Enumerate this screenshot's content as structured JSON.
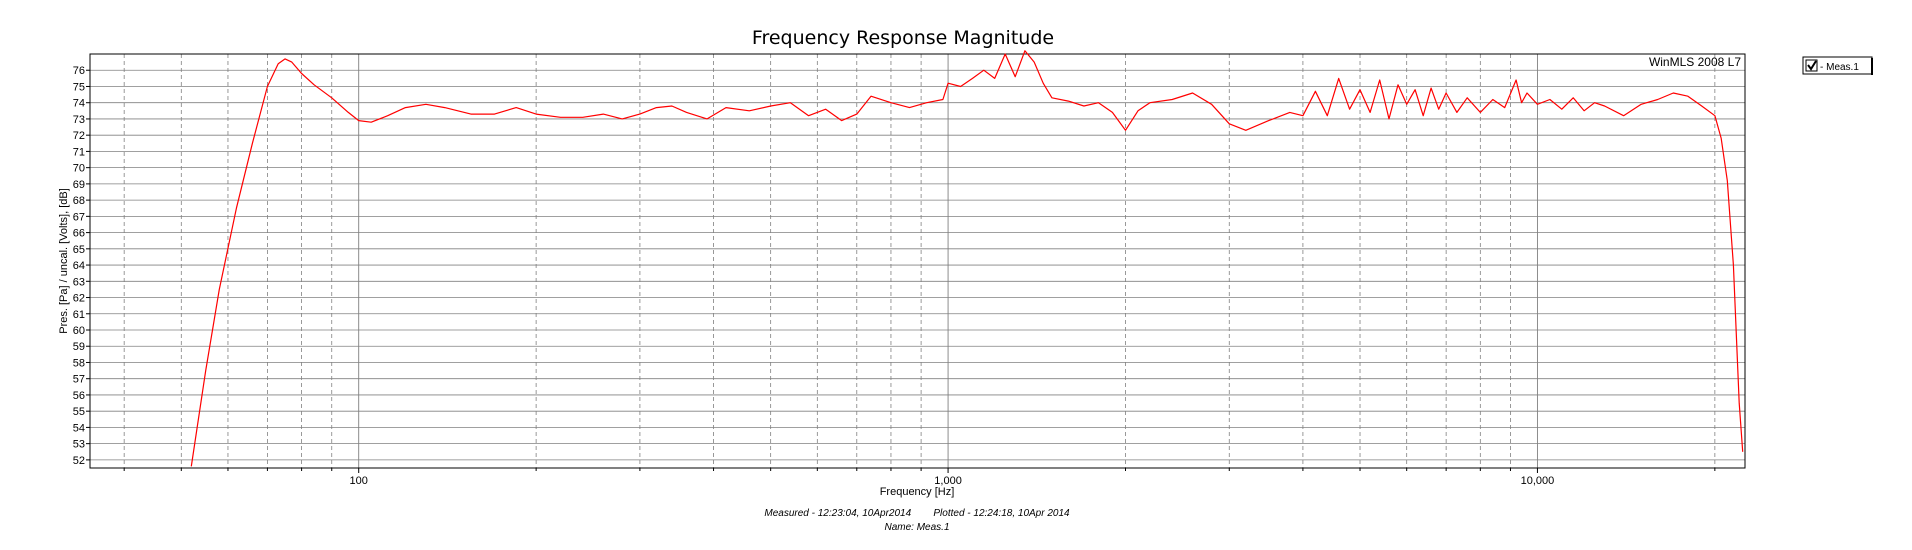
{
  "chart_data": {
    "type": "line",
    "title": "Frequency Response Magnitude",
    "xlabel": "Frequency [Hz]",
    "ylabel": "Pres. [Pa] / uncal. [Volts], [dB]",
    "x_scale": "log",
    "xlim": [
      35,
      22500
    ],
    "ylim": [
      51.5,
      77
    ],
    "grid": true,
    "x_tick_labels": [
      {
        "value": 100,
        "label": "100"
      },
      {
        "value": 1000,
        "label": "1,000"
      },
      {
        "value": 10000,
        "label": "10,000"
      }
    ],
    "y_ticks": [
      52,
      53,
      54,
      55,
      56,
      57,
      58,
      59,
      60,
      61,
      62,
      63,
      64,
      65,
      66,
      67,
      68,
      69,
      70,
      71,
      72,
      73,
      74,
      75,
      76
    ],
    "legend": {
      "placement": "right",
      "checked": true
    },
    "series": [
      {
        "name": "Meas.1",
        "color": "#ff0000",
        "x": [
          52,
          55,
          58,
          62,
          66,
          70,
          73,
          75,
          77,
          80,
          84,
          90,
          96,
          100,
          105,
          112,
          120,
          130,
          140,
          155,
          170,
          185,
          200,
          220,
          240,
          260,
          280,
          300,
          320,
          340,
          360,
          390,
          420,
          460,
          500,
          540,
          580,
          620,
          660,
          700,
          740,
          800,
          860,
          920,
          980,
          1000,
          1050,
          1100,
          1150,
          1200,
          1250,
          1300,
          1350,
          1400,
          1450,
          1500,
          1600,
          1700,
          1800,
          1900,
          2000,
          2100,
          2200,
          2400,
          2600,
          2800,
          3000,
          3200,
          3500,
          3800,
          4000,
          4200,
          4400,
          4600,
          4800,
          5000,
          5200,
          5400,
          5600,
          5800,
          6000,
          6200,
          6400,
          6600,
          6800,
          7000,
          7300,
          7600,
          8000,
          8400,
          8800,
          9200,
          9400,
          9600,
          10000,
          10500,
          11000,
          11500,
          12000,
          12500,
          13000,
          14000,
          15000,
          16000,
          17000,
          18000,
          19000,
          20000,
          20500,
          21000,
          21500,
          22000,
          22300
        ],
        "y": [
          51.6,
          57.5,
          62.5,
          67.5,
          71.5,
          75.0,
          76.4,
          76.7,
          76.5,
          75.8,
          75.1,
          74.3,
          73.4,
          72.9,
          72.8,
          73.2,
          73.7,
          73.9,
          73.7,
          73.3,
          73.3,
          73.7,
          73.3,
          73.1,
          73.1,
          73.3,
          73.0,
          73.3,
          73.7,
          73.8,
          73.4,
          73.0,
          73.7,
          73.5,
          73.8,
          74.0,
          73.2,
          73.6,
          72.9,
          73.3,
          74.4,
          74.0,
          73.7,
          74.0,
          74.2,
          75.2,
          75.0,
          75.5,
          76.0,
          75.5,
          77.0,
          75.6,
          77.2,
          76.5,
          75.2,
          74.3,
          74.1,
          73.8,
          74.0,
          73.4,
          72.3,
          73.5,
          74.0,
          74.2,
          74.6,
          73.9,
          72.7,
          72.3,
          72.9,
          73.4,
          73.2,
          74.7,
          73.2,
          75.5,
          73.6,
          74.8,
          73.4,
          75.4,
          73.0,
          75.1,
          73.9,
          74.8,
          73.2,
          74.9,
          73.6,
          74.6,
          73.4,
          74.3,
          73.4,
          74.2,
          73.7,
          75.4,
          74.0,
          74.6,
          73.9,
          74.2,
          73.6,
          74.3,
          73.5,
          74.0,
          73.8,
          73.2,
          73.9,
          74.2,
          74.6,
          74.4,
          73.8,
          73.2,
          71.8,
          69.2,
          64.0,
          55.5,
          52.5
        ]
      }
    ]
  },
  "watermark": "WinMLS 2008 L7",
  "footer": {
    "line1": "Measured - 12:23:04, 10Apr2014        Plotted - 12:24:18, 10Apr 2014",
    "line2": "Name: Meas.1"
  },
  "legend_label": "- Meas.1",
  "colors": {
    "series": "#ff0000",
    "grid": "#808080",
    "frame": "#000000"
  }
}
